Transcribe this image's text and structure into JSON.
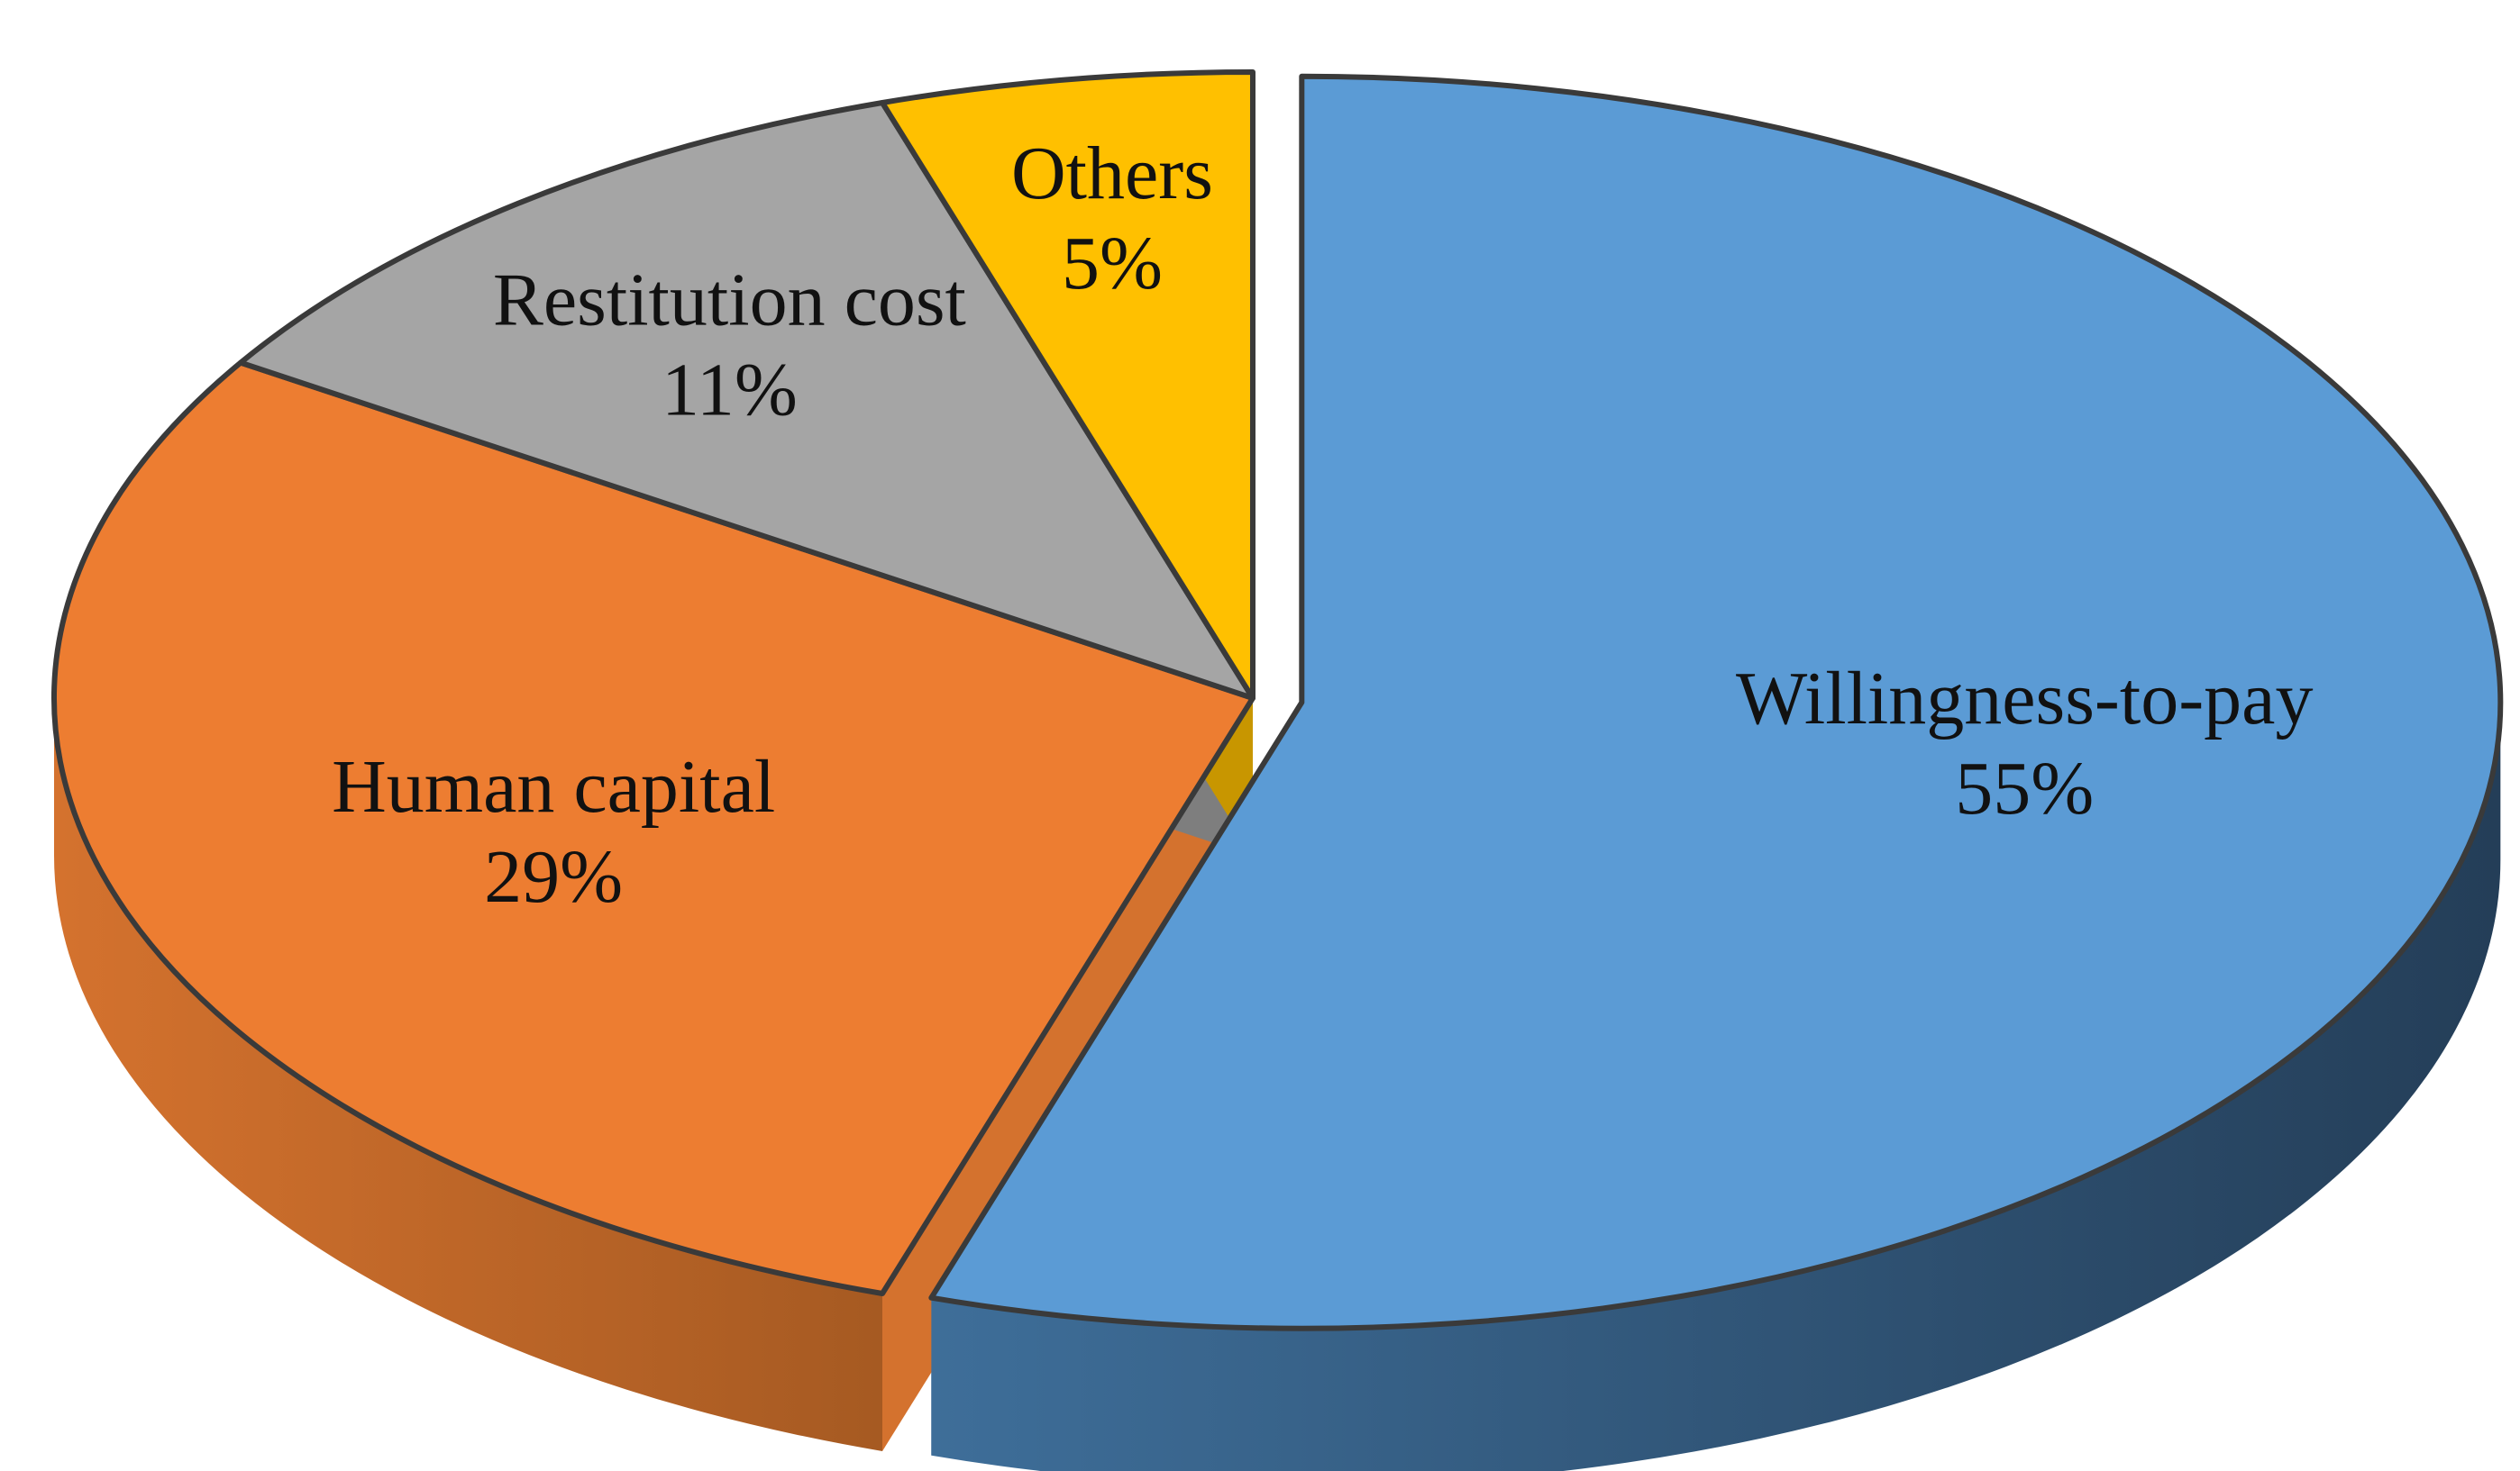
{
  "chart_data": {
    "type": "pie",
    "style": "3d-exploded",
    "title": "",
    "slices": [
      {
        "label": "Willingness-to-pay",
        "value": 55,
        "value_label": "55%",
        "color": "#5B9BD5",
        "side_color_light": "#3E6E99",
        "side_color_dark": "#243E58"
      },
      {
        "label": "Human capital",
        "value": 29,
        "value_label": "29%",
        "color": "#ED7D31",
        "side_color_light": "#D4722E",
        "side_color_dark": "#A65A22"
      },
      {
        "label": "Restitution cost",
        "value": 11,
        "value_label": "11%",
        "color": "#A5A5A5",
        "side_color_light": "#7E7E7E",
        "side_color_dark": "#5A5A5A"
      },
      {
        "label": "Others",
        "value": 5,
        "value_label": "5%",
        "color": "#FFC000",
        "side_color_light": "#C89600",
        "side_color_dark": "#8A6A00"
      }
    ],
    "legend": "none",
    "labels_inside": true
  }
}
